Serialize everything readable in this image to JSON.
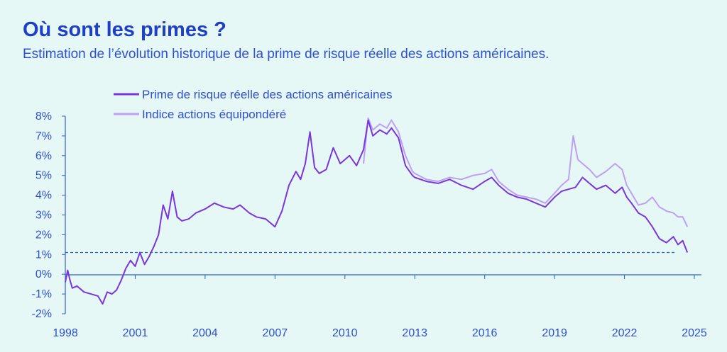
{
  "title": "Où sont les primes ?",
  "subtitle": "Estimation de l’évolution historique de la prime de risque réelle des actions américaines.",
  "chart_data": {
    "type": "line",
    "xlim": [
      1998,
      2025
    ],
    "ylim": [
      -2,
      8
    ],
    "x_ticks": [
      1998,
      2001,
      2004,
      2007,
      2010,
      2013,
      2016,
      2019,
      2022,
      2025
    ],
    "y_ticks": [
      8,
      7,
      6,
      5,
      4,
      3,
      2,
      1,
      0,
      -1,
      -2
    ],
    "y_tick_labels": [
      "8%",
      "7%",
      "6%",
      "5%",
      "4%",
      "3%",
      "2%",
      "1%",
      "0%",
      "-1%",
      "-2%"
    ],
    "x_tick_labels": [
      "1998",
      "2001",
      "2004",
      "2007",
      "2010",
      "2013",
      "2016",
      "2019",
      "2022",
      "2025"
    ],
    "legend_position": "top-left",
    "reference_line": {
      "y": 1.1,
      "style": "dashed",
      "color": "#2f5fd0"
    },
    "series": [
      {
        "name": "Prime de risque réelle des actions américaines",
        "color": "#7a35e0",
        "x": [
          1998.0,
          1998.1,
          1998.2,
          1998.3,
          1998.5,
          1998.8,
          1999.1,
          1999.4,
          1999.6,
          1999.8,
          2000.0,
          2000.2,
          2000.4,
          2000.6,
          2000.8,
          2001.0,
          2001.2,
          2001.4,
          2001.6,
          2001.8,
          2002.0,
          2002.2,
          2002.4,
          2002.6,
          2002.8,
          2003.0,
          2003.3,
          2003.6,
          2004.0,
          2004.4,
          2004.8,
          2005.2,
          2005.5,
          2005.9,
          2006.2,
          2006.6,
          2007.0,
          2007.3,
          2007.6,
          2007.9,
          2008.1,
          2008.3,
          2008.5,
          2008.7,
          2008.9,
          2009.2,
          2009.5,
          2009.8,
          2010.0,
          2010.2,
          2010.5,
          2010.8,
          2011.0,
          2011.2,
          2011.5,
          2011.8,
          2012.0,
          2012.3,
          2012.6,
          2012.9,
          2013.0,
          2013.5,
          2014.0,
          2014.5,
          2015.0,
          2015.5,
          2016.0,
          2016.3,
          2016.6,
          2017.0,
          2017.4,
          2017.8,
          2018.2,
          2018.6,
          2019.0,
          2019.3,
          2019.6,
          2019.9,
          2020.2,
          2020.5,
          2020.8,
          2021.2,
          2021.6,
          2021.9,
          2022.1,
          2022.3,
          2022.6,
          2022.9,
          2023.2,
          2023.5,
          2023.8,
          2024.1,
          2024.3,
          2024.5,
          2024.7
        ],
        "y": [
          -0.4,
          0.2,
          -0.3,
          -0.7,
          -0.6,
          -0.9,
          -1.0,
          -1.1,
          -1.5,
          -0.9,
          -1.0,
          -0.8,
          -0.3,
          0.3,
          0.7,
          0.4,
          1.1,
          0.5,
          0.9,
          1.4,
          2.0,
          3.5,
          2.8,
          4.2,
          2.9,
          2.7,
          2.8,
          3.1,
          3.3,
          3.6,
          3.4,
          3.3,
          3.5,
          3.1,
          2.9,
          2.8,
          2.4,
          3.2,
          4.5,
          5.2,
          4.8,
          5.6,
          7.2,
          5.4,
          5.1,
          5.3,
          6.4,
          5.6,
          5.8,
          6.0,
          5.5,
          6.3,
          7.8,
          7.0,
          7.3,
          7.1,
          7.4,
          6.9,
          5.5,
          5.0,
          4.9,
          4.7,
          4.6,
          4.8,
          4.5,
          4.3,
          4.7,
          4.9,
          4.5,
          4.1,
          3.9,
          3.8,
          3.6,
          3.4,
          3.9,
          4.2,
          4.3,
          4.4,
          4.9,
          4.6,
          4.3,
          4.5,
          4.1,
          4.4,
          3.9,
          3.6,
          3.1,
          2.9,
          2.4,
          1.8,
          1.6,
          1.9,
          1.5,
          1.7,
          1.1
        ]
      },
      {
        "name": "Indice actions équipondéré",
        "color": "#bea0f2",
        "x": [
          2010.8,
          2011.0,
          2011.2,
          2011.5,
          2011.8,
          2012.0,
          2012.3,
          2012.6,
          2012.9,
          2013.0,
          2013.5,
          2014.0,
          2014.5,
          2015.0,
          2015.5,
          2016.0,
          2016.3,
          2016.6,
          2017.0,
          2017.4,
          2017.8,
          2018.2,
          2018.6,
          2019.0,
          2019.3,
          2019.6,
          2019.8,
          2020.0,
          2020.2,
          2020.5,
          2020.8,
          2021.2,
          2021.6,
          2021.9,
          2022.1,
          2022.3,
          2022.6,
          2022.9,
          2023.2,
          2023.5,
          2023.8,
          2024.1,
          2024.3,
          2024.5,
          2024.7
        ],
        "y": [
          5.6,
          7.9,
          7.3,
          7.6,
          7.4,
          7.8,
          7.2,
          6.0,
          5.2,
          5.1,
          4.8,
          4.7,
          4.9,
          4.8,
          5.0,
          5.1,
          5.3,
          4.7,
          4.3,
          4.0,
          3.9,
          3.8,
          3.6,
          4.1,
          4.5,
          4.8,
          7.0,
          5.8,
          5.6,
          5.3,
          4.9,
          5.2,
          5.6,
          5.3,
          4.5,
          4.1,
          3.5,
          3.6,
          3.9,
          3.4,
          3.2,
          3.1,
          2.9,
          2.9,
          2.4
        ]
      }
    ]
  }
}
